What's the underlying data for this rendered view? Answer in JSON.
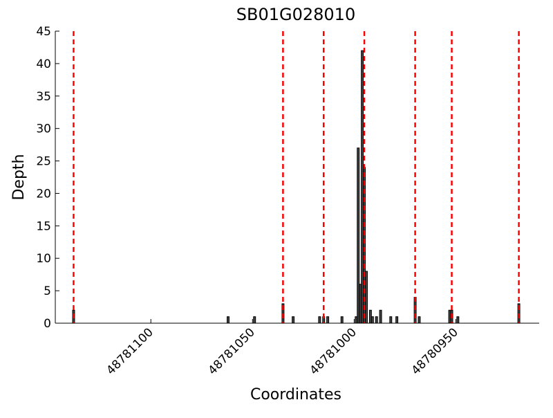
{
  "chart_data": {
    "type": "bar",
    "title": "SB01G028010",
    "x_label": "Coordinates",
    "y_label": "Depth",
    "x": [
      48781138,
      48781062,
      48781049,
      48781035,
      48781030,
      48781017,
      48781015,
      48781013,
      48781006,
      48780999,
      48780998,
      48780997,
      48780996,
      48780995,
      48780994,
      48780992,
      48780991,
      48780989,
      48780987,
      48780982,
      48780979,
      48780970,
      48780968,
      48780953,
      48780952,
      48780949,
      48780919
    ],
    "values": [
      2,
      1,
      1,
      3,
      1,
      1,
      1,
      1,
      1,
      1,
      27,
      6,
      42,
      24,
      8,
      2,
      1,
      1,
      2,
      1,
      1,
      4,
      1,
      2,
      2,
      1,
      3
    ],
    "color": "#444444",
    "markers": [
      48781138,
      48781035,
      48781015,
      48780995,
      48780970,
      48780952,
      48780919
    ],
    "marker_color": "#ff0000",
    "xlim": [
      48781147,
      48780909
    ],
    "xticks": [
      48781100,
      48781050,
      48781000,
      48780950
    ],
    "ylim": [
      0,
      45
    ],
    "yticks": [
      0,
      5,
      10,
      15,
      20,
      25,
      30,
      35,
      40,
      45
    ]
  }
}
